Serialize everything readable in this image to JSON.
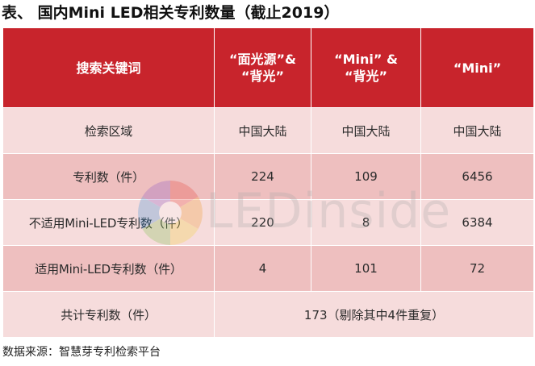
{
  "title": "表、 国内Mini LED相关专利数量（截止2019）",
  "table": {
    "headers": {
      "keyword": "搜索关键词",
      "col1": [
        "“面光源”&",
        "“背光”"
      ],
      "col2": [
        "“Mini” &",
        "“背光”"
      ],
      "col3": "“Mini”"
    },
    "rows": [
      {
        "label": "检索区域",
        "c1": "中国大陆",
        "c2": "中国大陆",
        "c3": "中国大陆"
      },
      {
        "label": "专利数（件）",
        "c1": "224",
        "c2": "109",
        "c3": "6456"
      },
      {
        "label": "不适用Mini-LED专利数（件）",
        "c1": "220",
        "c2": "8",
        "c3": "6384"
      },
      {
        "label": "适用Mini-LED专利数（件）",
        "c1": "4",
        "c2": "101",
        "c3": "72"
      }
    ],
    "total": {
      "label": "共计专利数（件）",
      "value": "173（剔除其中4件重复）"
    }
  },
  "source": "数据来源：智慧芽专利检索平台",
  "watermark": {
    "text": "LEDinside"
  },
  "colors": {
    "header_bg": "#c8242c",
    "row_light": "#f6dcdc",
    "row_dark": "#eebfbf"
  }
}
